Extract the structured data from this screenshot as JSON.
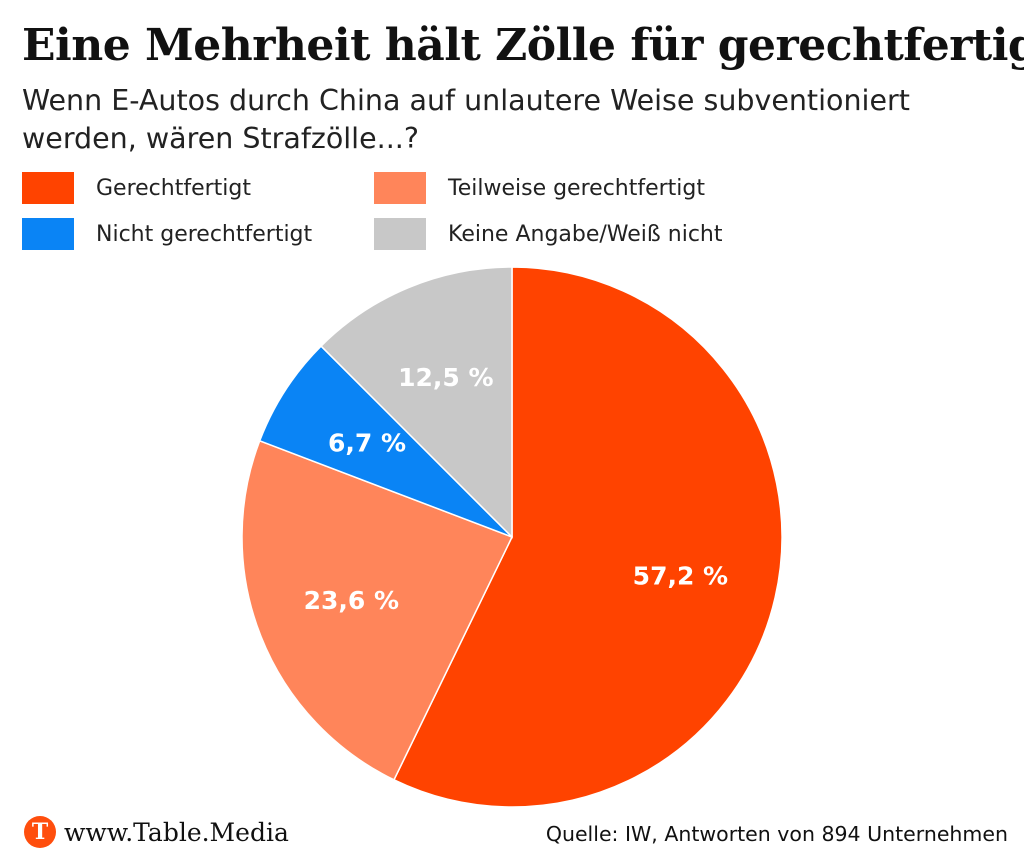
{
  "header": {
    "title": "Eine Mehrheit hält Zölle für gerechtfertigt",
    "subtitle": "Wenn E-Autos durch China auf unlautere Weise subventioniert werden, wären Strafzölle...?"
  },
  "chart_data": {
    "type": "pie",
    "title": "Eine Mehrheit hält Zölle für gerechtfertigt",
    "subtitle": "Wenn E-Autos durch China auf unlautere Weise subventioniert werden, wären Strafzölle...?",
    "legend_placement": "top",
    "slices": [
      {
        "name": "Gerechtfertigt",
        "value": 57.2,
        "label": "57,2 %",
        "color": "#ff4300"
      },
      {
        "name": "Teilweise gerechtfertigt",
        "value": 23.6,
        "label": "23,6 %",
        "color": "#ff855a"
      },
      {
        "name": "Nicht gerechtfertigt",
        "value": 6.7,
        "label": "6,7 %",
        "color": "#0a84f5"
      },
      {
        "name": "Keine Angabe/Weiß nicht",
        "value": 12.5,
        "label": "12,5 %",
        "color": "#c8c8c8"
      }
    ]
  },
  "footer": {
    "logo_letter": "T",
    "logo_text": "www.Table.Media",
    "source": "Quelle: IW, Antworten von 894 Unternehmen"
  }
}
